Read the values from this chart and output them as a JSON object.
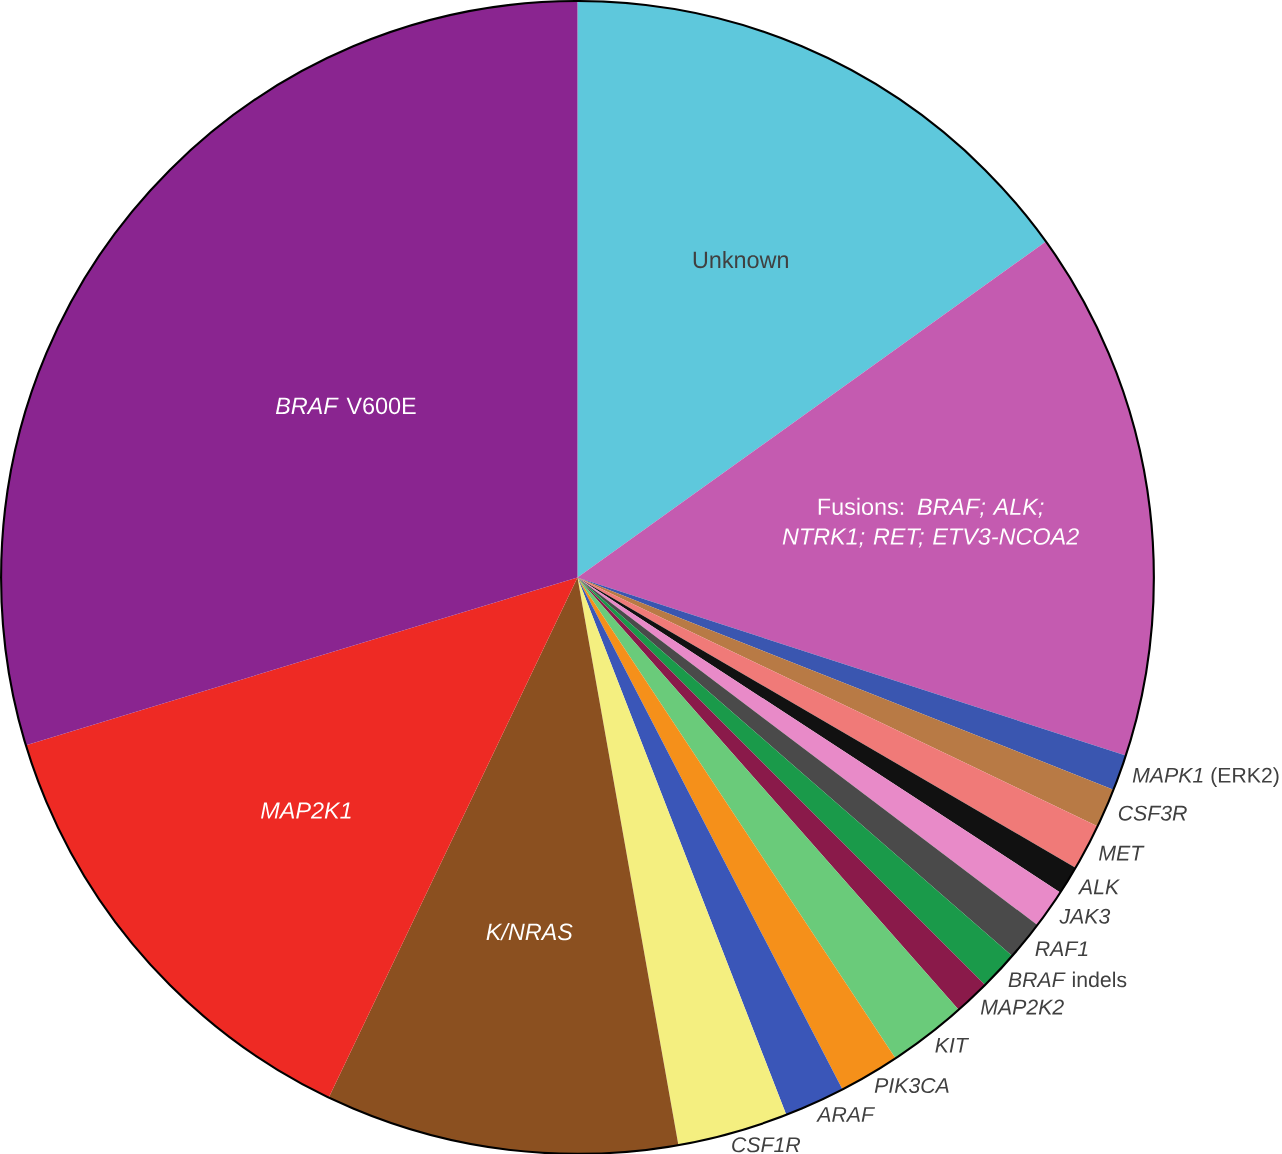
{
  "chart_data": {
    "type": "pie",
    "categories": [
      "Unknown",
      "Fusions: *BRAF; ALK; NTRK1; RET; ETV3-NCOA2*",
      "*MAPK1* (ERK2)",
      "*CSF3R*",
      "*MET*",
      "*ALK*",
      "*JAK3*",
      "*RAF1*",
      "*BRAF* indels",
      "*MAP2K2*",
      "*KIT*",
      "*PIK3CA*",
      "*ARAF*",
      "*CSF1R*",
      "*K/NRAS*",
      "*MAP2K1*",
      "*BRAF* V600E"
    ],
    "values": [
      15.1,
      14.9,
      1.0,
      1.1,
      1.3,
      0.8,
      1.1,
      1.1,
      1.1,
      1.0,
      2.2,
      1.7,
      1.7,
      3.1,
      9.9,
      13.2,
      29.7
    ],
    "colors": [
      "#5ec8dc",
      "#c45bb0",
      "#3a56b0",
      "#b87a45",
      "#f07a78",
      "#111111",
      "#e88ac8",
      "#4a4a4a",
      "#1a9a4a",
      "#8a1a4a",
      "#6acb7a",
      "#f5901a",
      "#3a56b8",
      "#f4ef80",
      "#8b5020",
      "#ee2a24",
      "#8a2590"
    ]
  }
}
